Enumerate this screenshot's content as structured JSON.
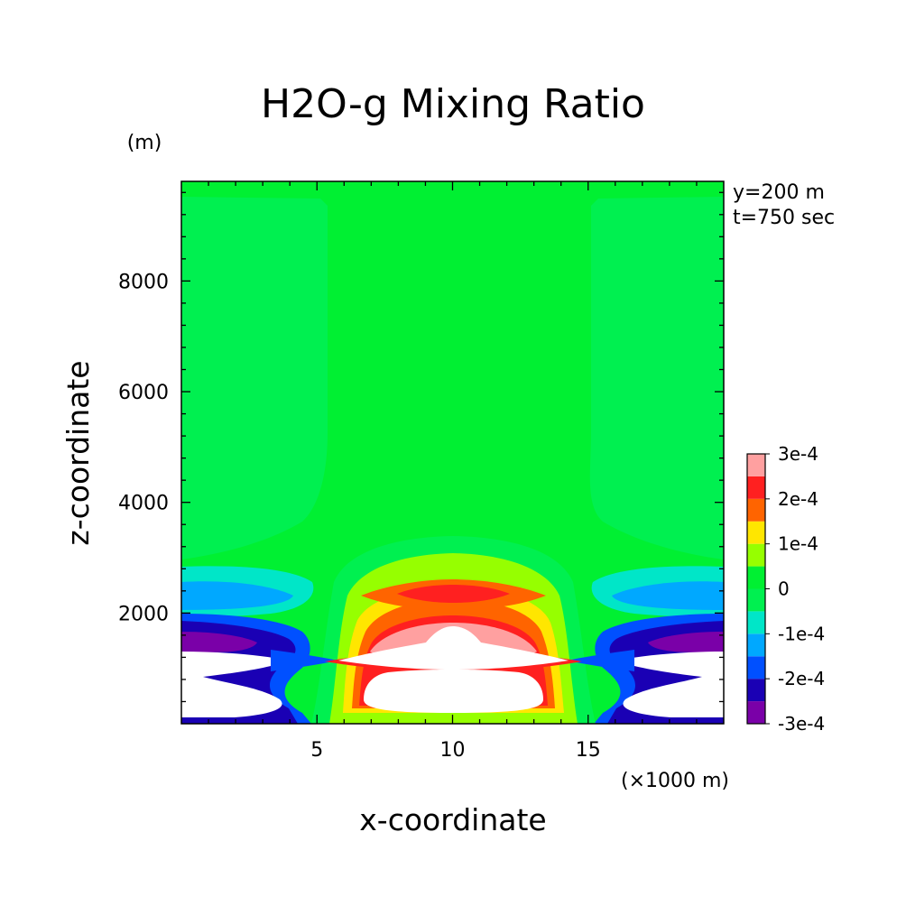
{
  "chart_data": {
    "type": "heatmap",
    "title": "H2O-g Mixing Ratio",
    "xlabel": "x-coordinate",
    "ylabel": "z-coordinate",
    "x_unit": "(×1000 m)",
    "y_unit": "(m)",
    "annotations": [
      "y=200 m",
      "t=750 sec"
    ],
    "xlim": [
      0,
      20
    ],
    "ylim": [
      0,
      9800
    ],
    "x_ticks": [
      5,
      10,
      15
    ],
    "y_ticks": [
      2000,
      4000,
      6000,
      8000
    ],
    "colorbar": {
      "levels": [
        -0.0003,
        -0.00025,
        -0.0002,
        -0.00015,
        -0.0001,
        -5e-05,
        0,
        5e-05,
        0.0001,
        0.00015,
        0.0002,
        0.00025,
        0.0003
      ],
      "labels": [
        "3e-4",
        "2e-4",
        "1e-4",
        "0",
        "-1e-4",
        "-2e-4",
        "-3e-4"
      ],
      "colors": [
        "#7a00a8",
        "#1a00b4",
        "#0050ff",
        "#00a8ff",
        "#00e6c8",
        "#00f050",
        "#00f032",
        "#96ff00",
        "#ffe600",
        "#ff6400",
        "#ff2020",
        "#ffa0a0"
      ],
      "out_of_range_color": "#ffffff"
    }
  }
}
